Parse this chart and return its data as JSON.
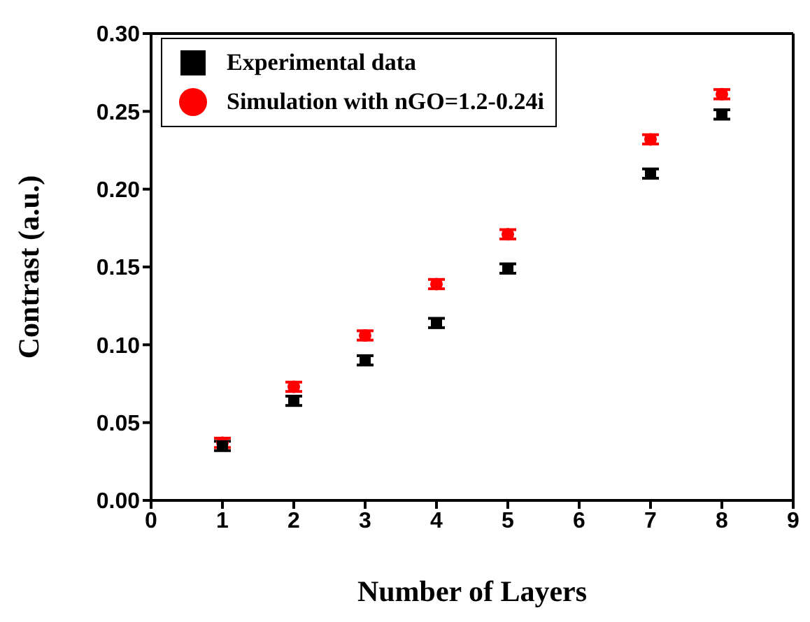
{
  "chart_data": {
    "type": "scatter",
    "xlabel": "Number of Layers",
    "ylabel": "Contrast (a.u.)",
    "x": [
      1,
      2,
      3,
      4,
      5,
      7,
      8
    ],
    "xlim": [
      0,
      9
    ],
    "xticks": [
      0,
      1,
      2,
      3,
      4,
      5,
      6,
      7,
      8,
      9
    ],
    "ylim": [
      0,
      0.3
    ],
    "yticks": [
      {
        "value": 0,
        "label": "0.00"
      },
      {
        "value": 0.05,
        "label": "0.05"
      },
      {
        "value": 0.1,
        "label": "0.10"
      },
      {
        "value": 0.15,
        "label": "0.15"
      },
      {
        "value": 0.2,
        "label": "0.20"
      },
      {
        "value": 0.25,
        "label": "0.25"
      },
      {
        "value": 0.3,
        "label": "0.30"
      }
    ],
    "grid": false,
    "legend": "top left",
    "series": [
      {
        "name": "Experimental data",
        "color": "#000000",
        "marker": "square",
        "values": [
          0.035,
          0.064,
          0.09,
          0.114,
          0.149,
          0.21,
          0.248
        ],
        "errors": [
          0.003,
          0.003,
          0.003,
          0.003,
          0.003,
          0.003,
          0.003
        ]
      },
      {
        "name": "Simulation with nGO=1.2-0.24i",
        "color": "#ff0000",
        "marker": "circle",
        "values": [
          0.037,
          0.073,
          0.106,
          0.139,
          0.171,
          0.232,
          0.261
        ],
        "errors": [
          0.003,
          0.003,
          0.003,
          0.003,
          0.003,
          0.003,
          0.003
        ]
      }
    ]
  }
}
